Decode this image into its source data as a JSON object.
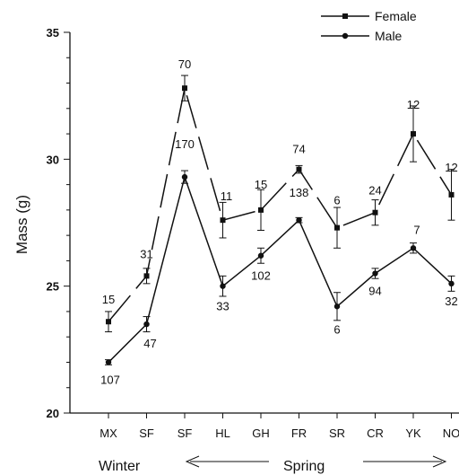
{
  "chart_data": {
    "type": "line",
    "xlabel": "",
    "ylabel": "Mass (g)",
    "ylim": [
      20,
      35
    ],
    "yticks": [
      20,
      25,
      30,
      35
    ],
    "categories": [
      "MX",
      "SF",
      "SF",
      "HL",
      "GH",
      "FR",
      "SR",
      "CR",
      "YK",
      "NO"
    ],
    "season_labels": {
      "left": "Winter",
      "right": "Spring"
    },
    "legend": {
      "placement": "top-right"
    },
    "series": [
      {
        "name": "Female",
        "marker": "square",
        "line_style": "dashed",
        "values": [
          23.6,
          25.4,
          32.8,
          27.6,
          28.0,
          29.6,
          27.3,
          27.9,
          31.0,
          28.6
        ],
        "errors": [
          0.4,
          0.3,
          0.5,
          0.7,
          0.8,
          0.15,
          0.8,
          0.5,
          1.1,
          1.0
        ],
        "n": [
          "15",
          "31",
          "70",
          "11",
          "15",
          "74",
          "6",
          "24",
          "12",
          "12"
        ]
      },
      {
        "name": "Male",
        "marker": "circle",
        "line_style": "solid",
        "values": [
          22.0,
          23.5,
          29.3,
          25.0,
          26.2,
          27.6,
          24.2,
          25.5,
          26.5,
          25.1
        ],
        "errors": [
          0.1,
          0.3,
          0.25,
          0.4,
          0.3,
          0.1,
          0.55,
          0.2,
          0.2,
          0.3
        ],
        "n": [
          "107",
          "47",
          "170",
          "33",
          "102",
          "138",
          "6",
          "94",
          "7",
          "32"
        ]
      }
    ]
  }
}
